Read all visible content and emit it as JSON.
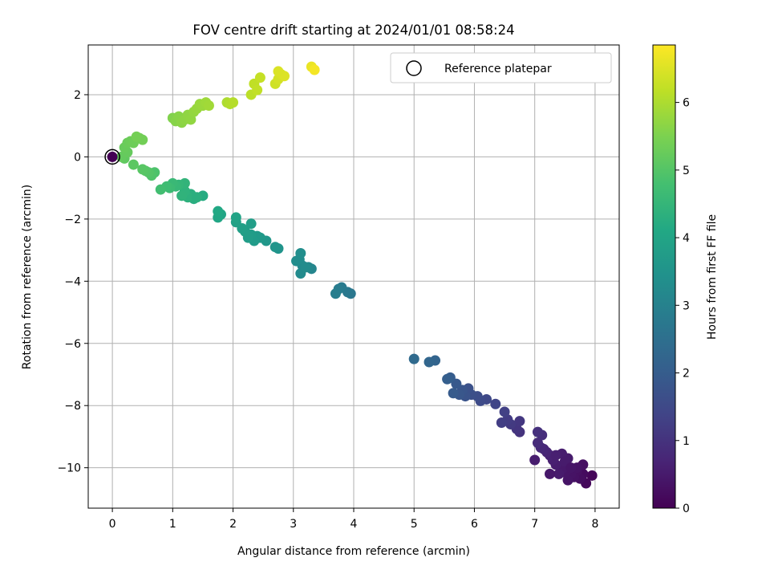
{
  "chart_data": {
    "type": "scatter",
    "title": "FOV centre drift starting at 2024/01/01 08:58:24",
    "xlabel": "Angular distance from reference (arcmin)",
    "ylabel": "Rotation from reference (arcmin)",
    "xlim": [
      -0.4,
      8.4
    ],
    "ylim": [
      -11.3,
      3.6
    ],
    "xticks": [
      0,
      1,
      2,
      3,
      4,
      5,
      6,
      7,
      8
    ],
    "yticks": [
      -10,
      -8,
      -6,
      -4,
      -2,
      0,
      2
    ],
    "grid": true,
    "legend": {
      "position": "top-right",
      "entries": [
        "Reference platepar"
      ]
    },
    "reference_point": {
      "x": 0,
      "y": 0
    },
    "colorbar": {
      "label": "Hours from first FF file",
      "min": 0,
      "max": 6.85,
      "ticks": [
        0,
        1,
        2,
        3,
        4,
        5,
        6
      ],
      "colormap": "viridis"
    },
    "colors": {
      "axis": "#000000",
      "grid": "#b0b0b0"
    },
    "series": [
      {
        "points": [
          {
            "x": 7.95,
            "y": -10.25,
            "c": 0.1
          },
          {
            "x": 7.85,
            "y": -10.5,
            "c": 0.15
          },
          {
            "x": 7.8,
            "y": -10.2,
            "c": 0.2
          },
          {
            "x": 7.75,
            "y": -10.35,
            "c": 0.25
          },
          {
            "x": 7.7,
            "y": -10.1,
            "c": 0.3
          },
          {
            "x": 7.65,
            "y": -10.3,
            "c": 0.32
          },
          {
            "x": 7.6,
            "y": -10.2,
            "c": 0.35
          },
          {
            "x": 7.55,
            "y": -10.4,
            "c": 0.38
          },
          {
            "x": 7.5,
            "y": -10.15,
            "c": 0.4
          },
          {
            "x": 7.45,
            "y": -10.05,
            "c": 0.45
          },
          {
            "x": 7.4,
            "y": -10.2,
            "c": 0.5
          },
          {
            "x": 7.35,
            "y": -9.9,
            "c": 0.55
          },
          {
            "x": 7.3,
            "y": -9.75,
            "c": 0.6
          },
          {
            "x": 7.25,
            "y": -9.6,
            "c": 0.65
          },
          {
            "x": 7.2,
            "y": -9.5,
            "c": 0.7
          },
          {
            "x": 7.15,
            "y": -9.4,
            "c": 0.75
          },
          {
            "x": 7.1,
            "y": -9.35,
            "c": 0.8
          },
          {
            "x": 7.0,
            "y": -9.75,
            "c": 0.55
          },
          {
            "x": 7.05,
            "y": -9.2,
            "c": 0.85
          },
          {
            "x": 7.12,
            "y": -8.95,
            "c": 0.9
          },
          {
            "x": 7.05,
            "y": -8.85,
            "c": 0.95
          },
          {
            "x": 7.8,
            "y": -9.9,
            "c": 0.3
          },
          {
            "x": 7.7,
            "y": -10.0,
            "c": 0.35
          },
          {
            "x": 7.55,
            "y": -9.7,
            "c": 0.5
          },
          {
            "x": 7.45,
            "y": -9.55,
            "c": 0.55
          },
          {
            "x": 7.5,
            "y": -9.8,
            "c": 0.5
          },
          {
            "x": 7.25,
            "y": -10.2,
            "c": 0.45
          },
          {
            "x": 7.6,
            "y": -10.0,
            "c": 0.4
          },
          {
            "x": 7.35,
            "y": -9.6,
            "c": 0.6
          },
          {
            "x": 6.75,
            "y": -8.85,
            "c": 1.0
          },
          {
            "x": 6.7,
            "y": -8.75,
            "c": 1.05
          },
          {
            "x": 6.75,
            "y": -8.5,
            "c": 1.1
          },
          {
            "x": 6.6,
            "y": -8.6,
            "c": 1.15
          },
          {
            "x": 6.55,
            "y": -8.45,
            "c": 1.2
          },
          {
            "x": 6.45,
            "y": -8.55,
            "c": 1.25
          },
          {
            "x": 6.5,
            "y": -8.2,
            "c": 1.3
          },
          {
            "x": 6.35,
            "y": -7.95,
            "c": 1.4
          },
          {
            "x": 6.2,
            "y": -7.8,
            "c": 1.5
          },
          {
            "x": 6.1,
            "y": -7.85,
            "c": 1.55
          },
          {
            "x": 6.05,
            "y": -7.7,
            "c": 1.6
          },
          {
            "x": 5.95,
            "y": -7.65,
            "c": 1.65
          },
          {
            "x": 5.9,
            "y": -7.45,
            "c": 1.7
          },
          {
            "x": 5.85,
            "y": -7.7,
            "c": 1.75
          },
          {
            "x": 5.8,
            "y": -7.5,
            "c": 1.8
          },
          {
            "x": 5.75,
            "y": -7.65,
            "c": 1.85
          },
          {
            "x": 5.7,
            "y": -7.3,
            "c": 1.9
          },
          {
            "x": 5.65,
            "y": -7.6,
            "c": 1.95
          },
          {
            "x": 5.6,
            "y": -7.1,
            "c": 2.0
          },
          {
            "x": 5.55,
            "y": -7.15,
            "c": 2.05
          },
          {
            "x": 5.35,
            "y": -6.55,
            "c": 2.2
          },
          {
            "x": 5.25,
            "y": -6.6,
            "c": 2.25
          },
          {
            "x": 5.0,
            "y": -6.5,
            "c": 2.35
          },
          {
            "x": 3.95,
            "y": -4.4,
            "c": 2.7
          },
          {
            "x": 3.9,
            "y": -4.35,
            "c": 2.75
          },
          {
            "x": 3.8,
            "y": -4.2,
            "c": 2.8
          },
          {
            "x": 3.75,
            "y": -4.25,
            "c": 2.85
          },
          {
            "x": 3.7,
            "y": -4.4,
            "c": 2.9
          },
          {
            "x": 3.3,
            "y": -3.6,
            "c": 3.1
          },
          {
            "x": 3.25,
            "y": -3.55,
            "c": 3.15
          },
          {
            "x": 3.15,
            "y": -3.5,
            "c": 3.2
          },
          {
            "x": 3.12,
            "y": -3.75,
            "c": 3.25
          },
          {
            "x": 3.1,
            "y": -3.3,
            "c": 3.3
          },
          {
            "x": 3.05,
            "y": -3.35,
            "c": 3.32
          },
          {
            "x": 3.12,
            "y": -3.1,
            "c": 3.35
          },
          {
            "x": 3.2,
            "y": -3.55,
            "c": 3.28
          },
          {
            "x": 2.75,
            "y": -2.95,
            "c": 3.5
          },
          {
            "x": 2.7,
            "y": -2.9,
            "c": 3.55
          },
          {
            "x": 2.55,
            "y": -2.7,
            "c": 3.6
          },
          {
            "x": 2.45,
            "y": -2.6,
            "c": 3.65
          },
          {
            "x": 2.4,
            "y": -2.55,
            "c": 3.7
          },
          {
            "x": 2.35,
            "y": -2.7,
            "c": 3.72
          },
          {
            "x": 2.3,
            "y": -2.5,
            "c": 3.75
          },
          {
            "x": 2.25,
            "y": -2.6,
            "c": 3.78
          },
          {
            "x": 2.3,
            "y": -2.15,
            "c": 3.8
          },
          {
            "x": 2.2,
            "y": -2.4,
            "c": 3.82
          },
          {
            "x": 2.15,
            "y": -2.3,
            "c": 3.85
          },
          {
            "x": 2.05,
            "y": -2.1,
            "c": 3.9
          },
          {
            "x": 2.05,
            "y": -1.95,
            "c": 3.95
          },
          {
            "x": 1.8,
            "y": -1.85,
            "c": 4.0
          },
          {
            "x": 1.75,
            "y": -1.95,
            "c": 4.05
          },
          {
            "x": 1.75,
            "y": -1.75,
            "c": 4.1
          },
          {
            "x": 1.5,
            "y": -1.25,
            "c": 4.2
          },
          {
            "x": 1.35,
            "y": -1.35,
            "c": 4.25
          },
          {
            "x": 1.3,
            "y": -1.2,
            "c": 4.3
          },
          {
            "x": 1.25,
            "y": -1.3,
            "c": 4.35
          },
          {
            "x": 1.2,
            "y": -1.1,
            "c": 4.4
          },
          {
            "x": 1.15,
            "y": -1.25,
            "c": 4.42
          },
          {
            "x": 1.2,
            "y": -0.85,
            "c": 4.45
          },
          {
            "x": 1.1,
            "y": -0.9,
            "c": 4.5
          },
          {
            "x": 1.05,
            "y": -0.95,
            "c": 4.55
          },
          {
            "x": 1.0,
            "y": -0.85,
            "c": 4.6
          },
          {
            "x": 0.95,
            "y": -1.0,
            "c": 4.65
          },
          {
            "x": 0.9,
            "y": -0.95,
            "c": 4.7
          },
          {
            "x": 0.8,
            "y": -1.05,
            "c": 4.75
          },
          {
            "x": 1.4,
            "y": -1.3,
            "c": 4.3
          },
          {
            "x": 0.7,
            "y": -0.5,
            "c": 4.9
          },
          {
            "x": 0.65,
            "y": -0.6,
            "c": 4.95
          },
          {
            "x": 0.6,
            "y": -0.5,
            "c": 5.0
          },
          {
            "x": 0.55,
            "y": -0.45,
            "c": 5.02
          },
          {
            "x": 0.5,
            "y": -0.4,
            "c": 5.05
          },
          {
            "x": 0.35,
            "y": -0.25,
            "c": 5.1
          },
          {
            "x": 0.2,
            "y": -0.05,
            "c": 5.15
          },
          {
            "x": 0.15,
            "y": 0.0,
            "c": 5.2
          },
          {
            "x": 0.25,
            "y": 0.15,
            "c": 5.22
          },
          {
            "x": 0.2,
            "y": 0.3,
            "c": 5.25
          },
          {
            "x": 0.25,
            "y": 0.45,
            "c": 5.28
          },
          {
            "x": 0.3,
            "y": 0.5,
            "c": 5.3
          },
          {
            "x": 0.35,
            "y": 0.45,
            "c": 5.32
          },
          {
            "x": 0.45,
            "y": 0.6,
            "c": 5.35
          },
          {
            "x": 0.5,
            "y": 0.55,
            "c": 5.38
          },
          {
            "x": 0.4,
            "y": 0.65,
            "c": 5.4
          },
          {
            "x": 1.0,
            "y": 1.25,
            "c": 5.55
          },
          {
            "x": 1.05,
            "y": 1.15,
            "c": 5.6
          },
          {
            "x": 1.1,
            "y": 1.3,
            "c": 5.62
          },
          {
            "x": 1.15,
            "y": 1.1,
            "c": 5.65
          },
          {
            "x": 1.2,
            "y": 1.2,
            "c": 5.68
          },
          {
            "x": 1.25,
            "y": 1.35,
            "c": 5.7
          },
          {
            "x": 1.3,
            "y": 1.2,
            "c": 5.72
          },
          {
            "x": 1.35,
            "y": 1.45,
            "c": 5.75
          },
          {
            "x": 1.4,
            "y": 1.55,
            "c": 5.78
          },
          {
            "x": 1.45,
            "y": 1.7,
            "c": 5.8
          },
          {
            "x": 1.5,
            "y": 1.65,
            "c": 5.82
          },
          {
            "x": 1.55,
            "y": 1.75,
            "c": 5.85
          },
          {
            "x": 1.6,
            "y": 1.65,
            "c": 5.88
          },
          {
            "x": 1.9,
            "y": 1.75,
            "c": 6.0
          },
          {
            "x": 1.95,
            "y": 1.7,
            "c": 6.05
          },
          {
            "x": 2.0,
            "y": 1.75,
            "c": 6.08
          },
          {
            "x": 2.3,
            "y": 2.0,
            "c": 6.15
          },
          {
            "x": 2.35,
            "y": 2.35,
            "c": 6.2
          },
          {
            "x": 2.4,
            "y": 2.15,
            "c": 6.22
          },
          {
            "x": 2.45,
            "y": 2.55,
            "c": 6.25
          },
          {
            "x": 2.7,
            "y": 2.35,
            "c": 6.35
          },
          {
            "x": 2.75,
            "y": 2.5,
            "c": 6.4
          },
          {
            "x": 2.8,
            "y": 2.65,
            "c": 6.45
          },
          {
            "x": 2.85,
            "y": 2.6,
            "c": 6.5
          },
          {
            "x": 2.75,
            "y": 2.75,
            "c": 6.48
          },
          {
            "x": 3.3,
            "y": 2.9,
            "c": 6.65
          },
          {
            "x": 3.35,
            "y": 2.8,
            "c": 6.75
          }
        ]
      }
    ]
  }
}
